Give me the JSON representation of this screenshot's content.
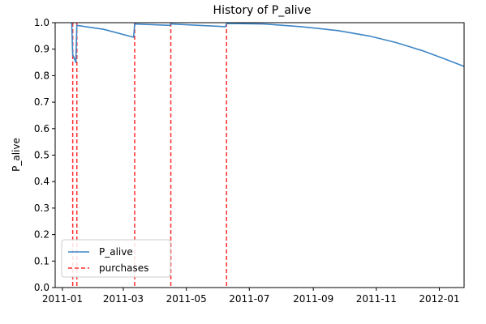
{
  "chart_data": {
    "type": "line",
    "title": "History of P_alive",
    "ylabel": "P_alive",
    "xlabel": "",
    "ylim": [
      0.0,
      1.0
    ],
    "xlim": [
      "2010-12-25",
      "2012-01-25"
    ],
    "grid": false,
    "legend_position": "bottom-left",
    "colors": {
      "line": "#3d85c6",
      "purchase": "#ff2d2d"
    },
    "yticks": [
      0.0,
      0.1,
      0.2,
      0.3,
      0.4,
      0.5,
      0.6,
      0.7,
      0.8,
      0.9,
      1.0
    ],
    "ytick_labels": [
      "0.0",
      "0.1",
      "0.2",
      "0.3",
      "0.4",
      "0.5",
      "0.6",
      "0.7",
      "0.8",
      "0.9",
      "1.0"
    ],
    "xticks": [
      "2011-01-01",
      "2011-03-01",
      "2011-05-01",
      "2011-07-01",
      "2011-09-01",
      "2011-11-01",
      "2012-01-01"
    ],
    "xtick_labels": [
      "2011-01",
      "2011-03",
      "2011-05",
      "2011-07",
      "2011-09",
      "2011-11",
      "2012-01"
    ],
    "series": [
      {
        "name": "P_alive",
        "points": [
          [
            "2011-01-10",
            1.0
          ],
          [
            "2011-01-11",
            0.88
          ],
          [
            "2011-01-14",
            0.85
          ],
          [
            "2011-01-15",
            0.99
          ],
          [
            "2011-02-10",
            0.975
          ],
          [
            "2011-03-11",
            0.945
          ],
          [
            "2011-03-12",
            0.995
          ],
          [
            "2011-04-15",
            0.99
          ],
          [
            "2011-04-16",
            0.995
          ],
          [
            "2011-06-08",
            0.985
          ],
          [
            "2011-06-09",
            0.997
          ],
          [
            "2011-07-15",
            0.995
          ],
          [
            "2011-08-20",
            0.985
          ],
          [
            "2011-09-25",
            0.97
          ],
          [
            "2011-10-25",
            0.95
          ],
          [
            "2011-11-20",
            0.925
          ],
          [
            "2011-12-15",
            0.895
          ],
          [
            "2012-01-05",
            0.865
          ],
          [
            "2012-01-25",
            0.835
          ]
        ]
      },
      {
        "name": "purchases",
        "dates": [
          "2011-01-11",
          "2011-01-15",
          "2011-03-12",
          "2011-04-16",
          "2011-06-09"
        ]
      }
    ]
  }
}
